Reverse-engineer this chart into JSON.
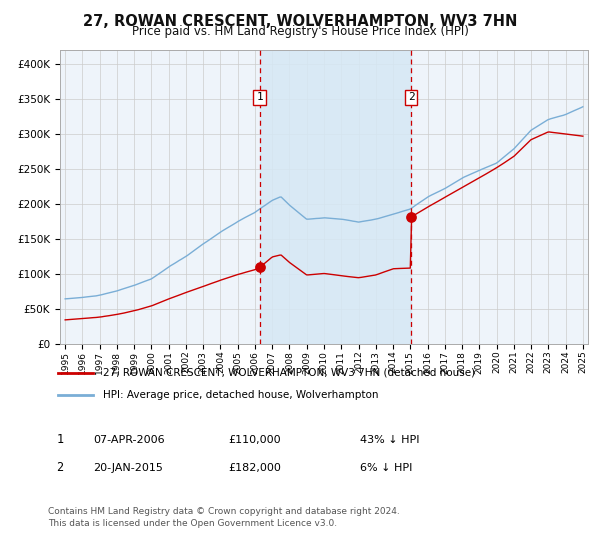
{
  "title": "27, ROWAN CRESCENT, WOLVERHAMPTON, WV3 7HN",
  "subtitle": "Price paid vs. HM Land Registry's House Price Index (HPI)",
  "hpi_color": "#7aaed6",
  "hpi_fill_color": "#d6e8f5",
  "price_color": "#cc0000",
  "background_color": "#ffffff",
  "plot_bg_color": "#eef4fa",
  "grid_color": "#cccccc",
  "ylim": [
    0,
    420000
  ],
  "yticks": [
    0,
    50000,
    100000,
    150000,
    200000,
    250000,
    300000,
    350000,
    400000
  ],
  "ytick_labels": [
    "£0",
    "£50K",
    "£100K",
    "£150K",
    "£200K",
    "£250K",
    "£300K",
    "£350K",
    "£400K"
  ],
  "year_start": 1995,
  "year_end": 2025,
  "purchase1_year": 2006.27,
  "purchase1_price": 110000,
  "purchase2_year": 2015.05,
  "purchase2_price": 182000,
  "legend_line1": "27, ROWAN CRESCENT, WOLVERHAMPTON, WV3 7HN (detached house)",
  "legend_line2": "HPI: Average price, detached house, Wolverhampton",
  "note1_num": "1",
  "note1_date": "07-APR-2006",
  "note1_price": "£110,000",
  "note1_hpi": "43% ↓ HPI",
  "note2_num": "2",
  "note2_date": "20-JAN-2015",
  "note2_price": "£182,000",
  "note2_hpi": "6% ↓ HPI",
  "footer": "Contains HM Land Registry data © Crown copyright and database right 2024.\nThis data is licensed under the Open Government Licence v3.0."
}
